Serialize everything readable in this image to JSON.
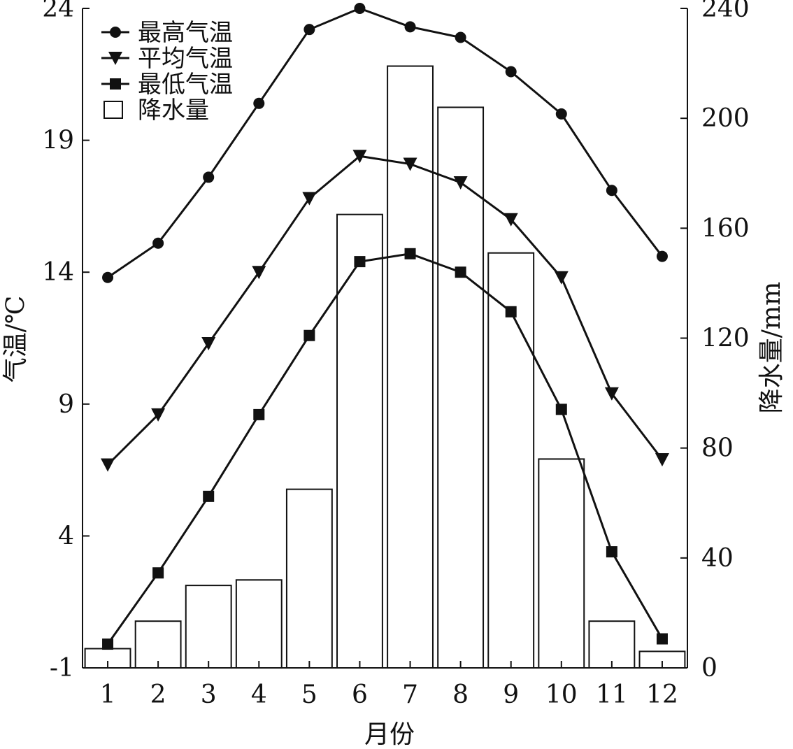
{
  "chart_data": {
    "type": "bar+line",
    "x_label": "月份",
    "y_left_label": "气温/℃",
    "y_right_label": "降水量/mm",
    "categories": [
      "1",
      "2",
      "3",
      "4",
      "5",
      "6",
      "7",
      "8",
      "9",
      "10",
      "11",
      "12"
    ],
    "y_left_ticks": [
      "24",
      "19",
      "14",
      "9",
      "4",
      "-1"
    ],
    "y_right_ticks": [
      "240",
      "200",
      "160",
      "120",
      "80",
      "40",
      "0"
    ],
    "y_left_range": [
      -1,
      24
    ],
    "y_right_range": [
      0,
      240
    ],
    "legend_position": "top-left",
    "grid": false,
    "series": [
      {
        "name": "最高气温",
        "type": "line",
        "marker": "circle",
        "axis": "left",
        "values": [
          13.8,
          15.1,
          17.6,
          20.4,
          23.2,
          24.0,
          23.3,
          22.9,
          21.6,
          20.0,
          17.1,
          14.6
        ]
      },
      {
        "name": "平均气温",
        "type": "line",
        "marker": "triangle-down",
        "axis": "left",
        "values": [
          6.7,
          8.6,
          11.3,
          14.0,
          16.8,
          18.4,
          18.1,
          17.4,
          16.0,
          13.8,
          9.4,
          6.9
        ]
      },
      {
        "name": "最低气温",
        "type": "line",
        "marker": "square",
        "axis": "left",
        "values": [
          -0.1,
          2.6,
          5.5,
          8.6,
          11.6,
          14.4,
          14.7,
          14.0,
          12.5,
          8.8,
          3.4,
          0.1
        ]
      },
      {
        "name": "降水量",
        "type": "bar",
        "axis": "right",
        "values": [
          7,
          17,
          30,
          32,
          65,
          165,
          219,
          204,
          151,
          76,
          17,
          6
        ]
      }
    ]
  }
}
